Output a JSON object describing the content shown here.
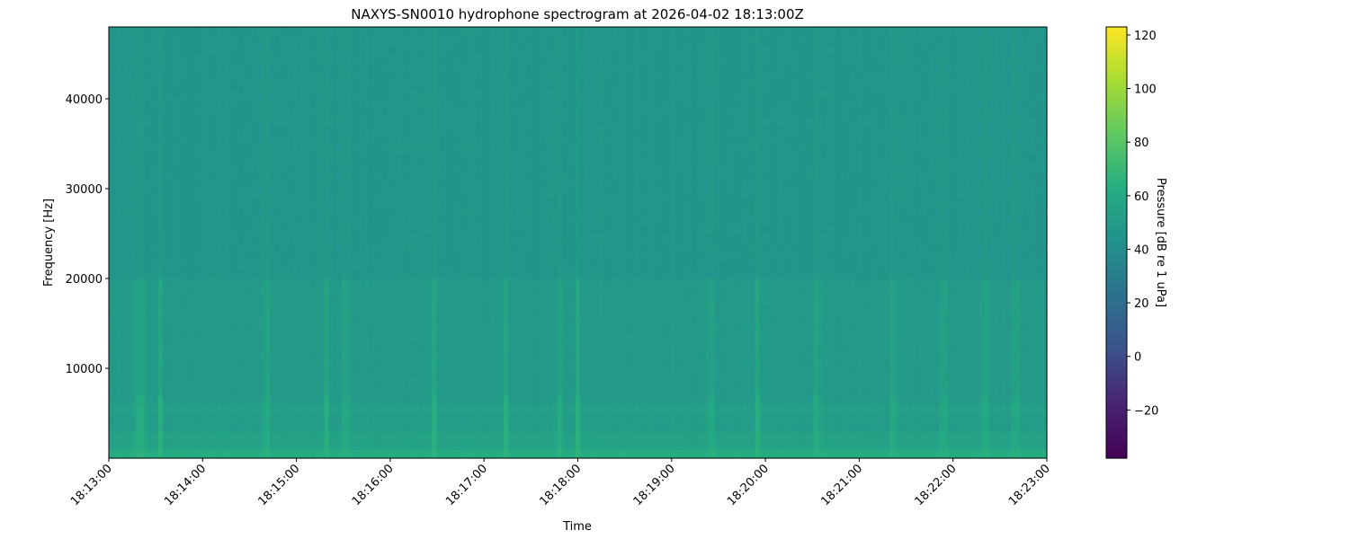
{
  "chart_data": {
    "type": "heatmap",
    "title": "NAXYS-SN0010 hydrophone spectrogram at 2026-04-02 18:13:00Z",
    "xlabel": "Time",
    "ylabel": "Frequency [Hz]",
    "x_ticks": [
      "18:13:00",
      "18:14:00",
      "18:15:00",
      "18:16:00",
      "18:17:00",
      "18:18:00",
      "18:19:00",
      "18:20:00",
      "18:21:00",
      "18:22:00",
      "18:23:00"
    ],
    "xlim": [
      "18:13:00",
      "18:23:00"
    ],
    "y_ticks": [
      10000,
      20000,
      30000,
      40000
    ],
    "ylim": [
      0,
      48000
    ],
    "colormap": "viridis",
    "colorbar": {
      "label": "Pressure [dB re 1 uPa]",
      "range": [
        -38,
        123
      ],
      "ticks": [
        -20,
        0,
        20,
        40,
        60,
        80,
        100,
        120
      ]
    },
    "frequency_band_levels_db": [
      {
        "band_hz": [
          0,
          1000
        ],
        "db": 62
      },
      {
        "band_hz": [
          1000,
          3000
        ],
        "db": 55
      },
      {
        "band_hz": [
          3000,
          5000
        ],
        "db": 51
      },
      {
        "band_hz": [
          5000,
          6500
        ],
        "db": 53
      },
      {
        "band_hz": [
          6500,
          20000
        ],
        "db": 49
      },
      {
        "band_hz": [
          20000,
          48000
        ],
        "db": 46
      }
    ],
    "transient_times": [
      "18:13:18",
      "18:13:22",
      "18:13:33",
      "18:14:41",
      "18:15:19",
      "18:15:32",
      "18:16:28",
      "18:17:14",
      "18:17:48",
      "18:18:00",
      "18:19:25",
      "18:19:55",
      "18:20:33",
      "18:21:22",
      "18:21:54",
      "18:22:20",
      "18:22:40"
    ],
    "transient_peak_db": 68
  }
}
